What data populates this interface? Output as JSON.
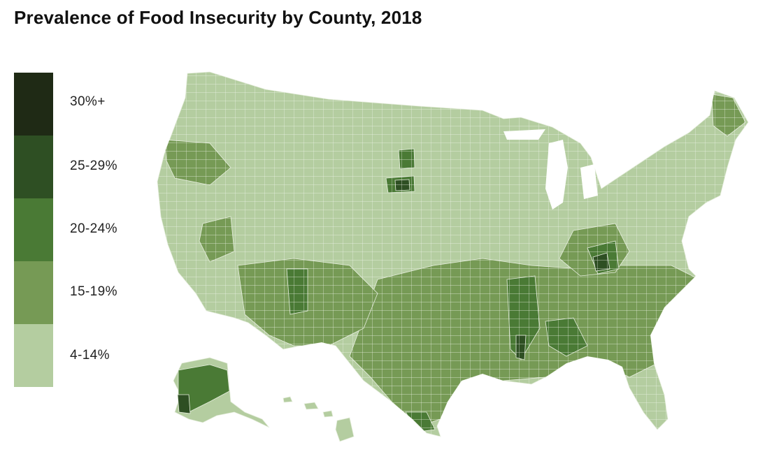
{
  "title": "Prevalence of Food Insecurity by County, 2018",
  "legend": [
    {
      "label": "30%+",
      "color": "#1f2a15"
    },
    {
      "label": "25-29%",
      "color": "#2e4f23"
    },
    {
      "label": "20-24%",
      "color": "#4a7a35"
    },
    {
      "label": "15-19%",
      "color": "#769a55"
    },
    {
      "label": "4-14%",
      "color": "#b4cda0"
    }
  ],
  "map": {
    "regions": [
      "Contiguous United States",
      "Alaska",
      "Hawaii"
    ],
    "county_border_color": "#e8efe0"
  }
}
